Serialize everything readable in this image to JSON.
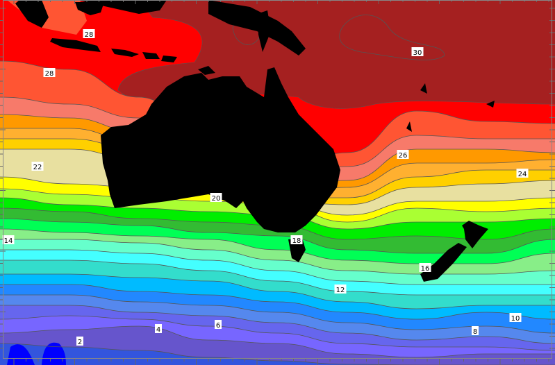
{
  "map": {
    "type": "filled-contour",
    "land_color": "#000000",
    "contour_line_color": "#555555",
    "bands": [
      {
        "level": 30,
        "color": "#a52020"
      },
      {
        "level": 28,
        "color": "#ff0000"
      },
      {
        "level": 27,
        "color": "#ff5533"
      },
      {
        "level": 26,
        "color": "#f77a6a"
      },
      {
        "level": 25,
        "color": "#ff9900"
      },
      {
        "level": 24,
        "color": "#ffb030"
      },
      {
        "level": 23,
        "color": "#ffd000"
      },
      {
        "level": 22,
        "color": "#e8e0a0"
      },
      {
        "level": 20,
        "color": "#ffff00"
      },
      {
        "level": 19,
        "color": "#aaff33"
      },
      {
        "level": 18,
        "color": "#00ee00"
      },
      {
        "level": 17,
        "color": "#33bb33"
      },
      {
        "level": 16,
        "color": "#00ff55"
      },
      {
        "level": 15,
        "color": "#88ee88"
      },
      {
        "level": 14,
        "color": "#66ffcc"
      },
      {
        "level": 13,
        "color": "#44ffff"
      },
      {
        "level": 12,
        "color": "#33ddcc"
      },
      {
        "level": 11,
        "color": "#00bbff"
      },
      {
        "level": 10,
        "color": "#2288ff"
      },
      {
        "level": 9,
        "color": "#5588ee"
      },
      {
        "level": 8,
        "color": "#6666ee"
      },
      {
        "level": 6,
        "color": "#7766ff"
      },
      {
        "level": 4,
        "color": "#6655cc"
      },
      {
        "level": 2,
        "color": "#3355dd"
      },
      {
        "level": 0,
        "color": "#0000ff"
      }
    ],
    "contour_labels": [
      "28",
      "28",
      "22",
      "20",
      "26",
      "24",
      "30",
      "14",
      "18",
      "16",
      "12",
      "10",
      "8",
      "6",
      "4",
      "2"
    ]
  }
}
